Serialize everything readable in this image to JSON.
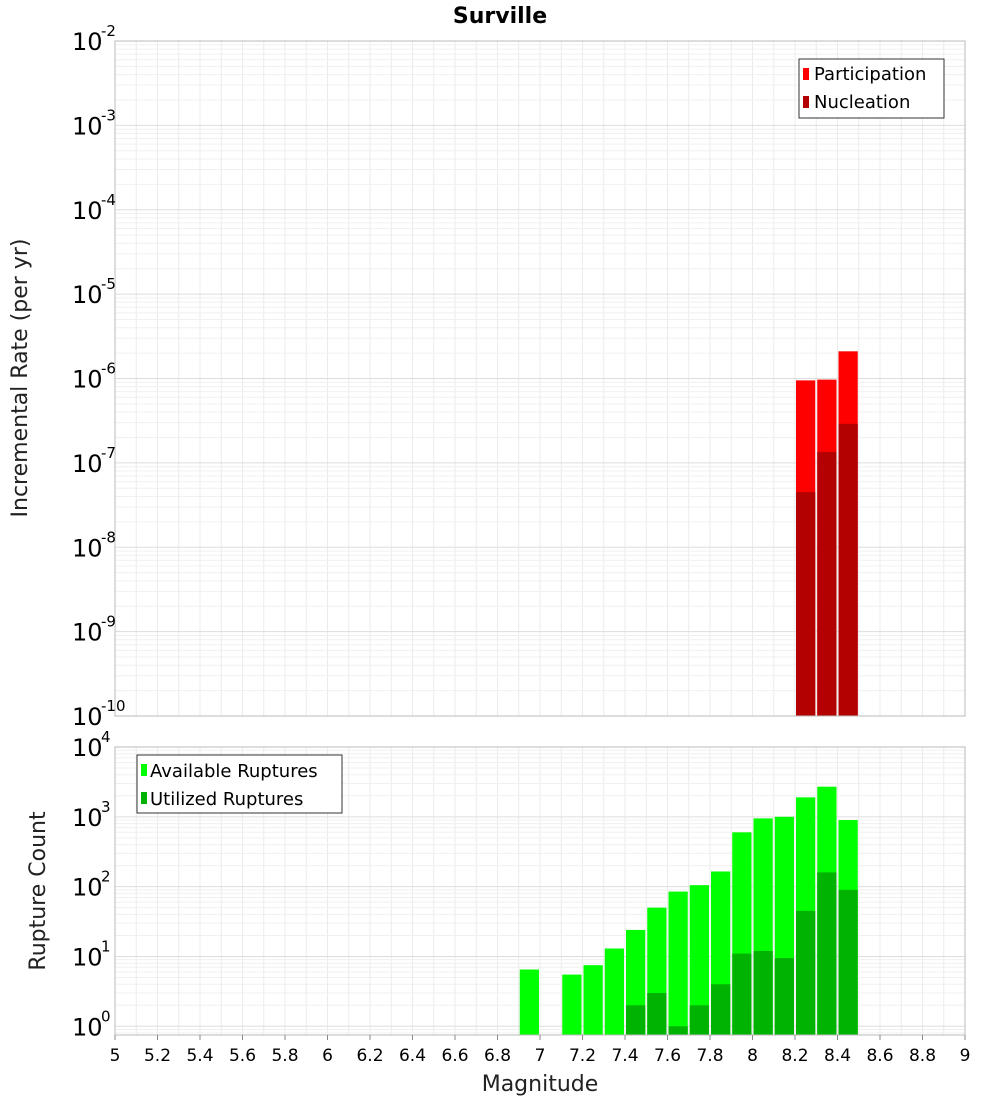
{
  "figure_title": "Surville",
  "chart_data": [
    {
      "type": "bar",
      "subplot": "top",
      "ylabel": "Incremental Rate (per yr)",
      "xlabel": "",
      "yscale": "log",
      "ylim": [
        1e-10,
        0.01
      ],
      "xlim": [
        5,
        9
      ],
      "legend_position": "top-right",
      "colors": {
        "Participation": "#ff0000",
        "Nucleation": "#b30000"
      },
      "series": [
        {
          "name": "Participation",
          "x": [
            8.25,
            8.35,
            8.45
          ],
          "values": [
            9.5e-07,
            9.7e-07,
            2.1e-06
          ]
        },
        {
          "name": "Nucleation",
          "x": [
            8.25,
            8.35,
            8.45
          ],
          "values": [
            4.5e-08,
            1.35e-07,
            2.9e-07
          ]
        }
      ],
      "ytick_base": [
        "10",
        "10",
        "10",
        "10",
        "10",
        "10",
        "10",
        "10",
        "10"
      ],
      "ytick_exponents": [
        "-10",
        "-9",
        "-8",
        "-7",
        "-6",
        "-5",
        "-4",
        "-3",
        "-2"
      ]
    },
    {
      "type": "bar",
      "subplot": "bottom",
      "ylabel": "Rupture Count",
      "xlabel": "Magnitude",
      "yscale": "log",
      "ylim": [
        0.75,
        10000
      ],
      "xlim": [
        5,
        9
      ],
      "legend_position": "top-left",
      "colors": {
        "Available Ruptures": "#00ff00",
        "Utilized Ruptures": "#00b300"
      },
      "series": [
        {
          "name": "Available Ruptures",
          "x": [
            6.95,
            7.15,
            7.25,
            7.35,
            7.45,
            7.55,
            7.65,
            7.75,
            7.85,
            7.95,
            8.05,
            8.15,
            8.25,
            8.35,
            8.45
          ],
          "values": [
            6.5,
            5.5,
            7.5,
            13,
            24,
            50,
            85,
            105,
            165,
            600,
            950,
            1000,
            1900,
            2700,
            900
          ]
        },
        {
          "name": "Utilized Ruptures",
          "x": [
            7.45,
            7.55,
            7.65,
            7.75,
            7.85,
            7.95,
            8.05,
            8.15,
            8.25,
            8.35,
            8.45
          ],
          "values": [
            2,
            3,
            1,
            2,
            4,
            11,
            12,
            9.5,
            45,
            160,
            90
          ]
        }
      ],
      "ytick_base": [
        "10",
        "10",
        "10",
        "10",
        "10"
      ],
      "ytick_exponents": [
        "0",
        "1",
        "2",
        "3",
        "4"
      ],
      "xticks": [
        "5",
        "5.2",
        "5.4",
        "5.6",
        "5.8",
        "6",
        "6.2",
        "6.4",
        "6.6",
        "6.8",
        "7",
        "7.2",
        "7.4",
        "7.6",
        "7.8",
        "8",
        "8.2",
        "8.4",
        "8.6",
        "8.8",
        "9"
      ]
    }
  ]
}
